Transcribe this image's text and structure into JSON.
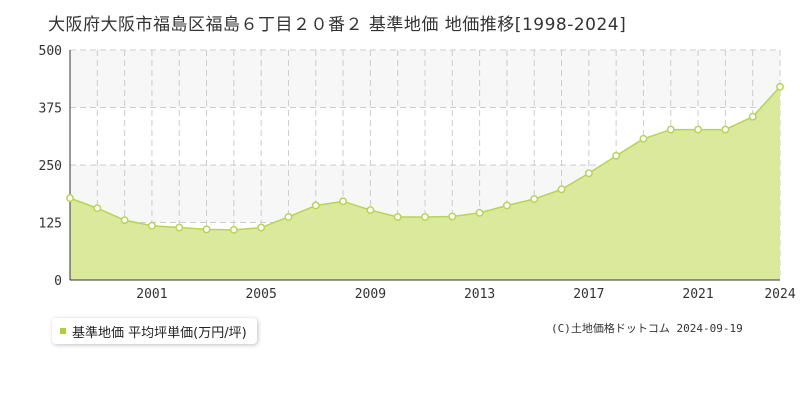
{
  "title": "大阪府大阪市福島区福島６丁目２０番２ 基準地価 地価推移[1998-2024]",
  "legend": {
    "label": "基準地価 平均坪単価(万円/坪)",
    "color": "#a9cf3a"
  },
  "copyright": "(C)土地価格ドットコム 2024-09-19",
  "colors": {
    "fill": "#dbe99c",
    "line": "#b7d455",
    "marker_edge": "#b7d455",
    "band": "#f7f7f7",
    "grid": "#cccccc",
    "axis": "#333333"
  },
  "chart_data": {
    "type": "area",
    "title": "大阪府大阪市福島区福島６丁目２０番２ 基準地価 地価推移[1998-2024]",
    "xlabel": "",
    "ylabel": "",
    "xlim": [
      1998,
      2024
    ],
    "ylim": [
      0,
      500
    ],
    "yticks": [
      0,
      125,
      250,
      375,
      500
    ],
    "xticks": [
      2001,
      2005,
      2009,
      2013,
      2017,
      2021,
      2024
    ],
    "grid": true,
    "legend_position": "bottom-left",
    "series": [
      {
        "name": "基準地価 平均坪単価(万円/坪)",
        "x": [
          1998,
          1999,
          2000,
          2001,
          2002,
          2003,
          2004,
          2005,
          2006,
          2007,
          2008,
          2009,
          2010,
          2011,
          2012,
          2013,
          2014,
          2015,
          2016,
          2017,
          2018,
          2019,
          2020,
          2021,
          2022,
          2023,
          2024
        ],
        "values": [
          178,
          156,
          130,
          118,
          114,
          110,
          109,
          114,
          137,
          162,
          171,
          152,
          137,
          137,
          138,
          146,
          162,
          176,
          197,
          232,
          270,
          307,
          327,
          327,
          327,
          355,
          420
        ]
      }
    ]
  }
}
